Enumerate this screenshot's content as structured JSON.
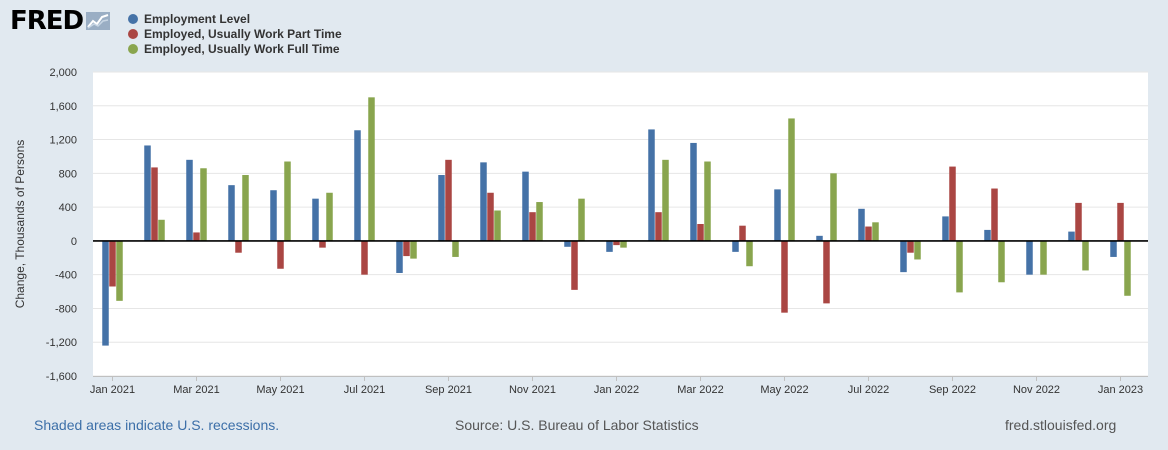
{
  "brand": {
    "logo_text": "FRED"
  },
  "colors": {
    "employment": "#4572a7",
    "part_time": "#aa4643",
    "full_time": "#89a54e",
    "plot_bg": "#ffffff",
    "grid": "#e6e6e6",
    "page_bg": "#e1e9f0"
  },
  "footer": {
    "recession_note": "Shaded areas indicate U.S. recessions.",
    "source": "Source: U.S. Bureau of Labor Statistics",
    "url": "fred.stlouisfed.org"
  },
  "chart_data": {
    "type": "bar",
    "title": "",
    "xlabel": "",
    "ylabel": "Change, Thousands of Persons",
    "ylim": [
      -1600,
      2000
    ],
    "yticks": [
      -1600,
      -1200,
      -800,
      -400,
      0,
      400,
      800,
      1200,
      1600,
      2000
    ],
    "ytick_labels": [
      "-1,600",
      "-1,200",
      "-800",
      "-400",
      "0",
      "400",
      "800",
      "1,200",
      "1,600",
      "2,000"
    ],
    "grid": true,
    "legend_position": "top-left",
    "categories": [
      "Jan 2021",
      "Feb 2021",
      "Mar 2021",
      "Apr 2021",
      "May 2021",
      "Jun 2021",
      "Jul 2021",
      "Aug 2021",
      "Sep 2021",
      "Oct 2021",
      "Nov 2021",
      "Dec 2021",
      "Jan 2022",
      "Feb 2022",
      "Mar 2022",
      "Apr 2022",
      "May 2022",
      "Jun 2022",
      "Jul 2022",
      "Aug 2022",
      "Sep 2022",
      "Oct 2022",
      "Nov 2022",
      "Dec 2022",
      "Jan 2023"
    ],
    "xtick_labels": [
      "Jan 2021",
      "Mar 2021",
      "May 2021",
      "Jul 2021",
      "Sep 2021",
      "Nov 2021",
      "Jan 2022",
      "Mar 2022",
      "May 2022",
      "Jul 2022",
      "Sep 2022",
      "Nov 2022",
      "Jan 2023"
    ],
    "series": [
      {
        "name": "Employment Level",
        "color_key": "employment",
        "values": [
          -1240,
          1130,
          960,
          660,
          600,
          500,
          1310,
          -380,
          780,
          930,
          820,
          -70,
          -130,
          1320,
          1160,
          -130,
          610,
          60,
          380,
          -370,
          290,
          130,
          -400,
          110,
          -190
        ]
      },
      {
        "name": "Employed, Usually Work Part Time",
        "color_key": "part_time",
        "values": [
          -540,
          870,
          100,
          -140,
          -330,
          -80,
          -400,
          -180,
          960,
          570,
          340,
          -580,
          -50,
          340,
          200,
          180,
          -850,
          -740,
          170,
          -140,
          880,
          620,
          0,
          450,
          450
        ]
      },
      {
        "name": "Employed, Usually Work Full Time",
        "color_key": "full_time",
        "values": [
          -710,
          250,
          860,
          780,
          940,
          570,
          1700,
          -210,
          -190,
          360,
          460,
          500,
          -80,
          960,
          940,
          -300,
          1450,
          800,
          220,
          -220,
          -610,
          -490,
          -400,
          -350,
          -650
        ]
      }
    ]
  }
}
